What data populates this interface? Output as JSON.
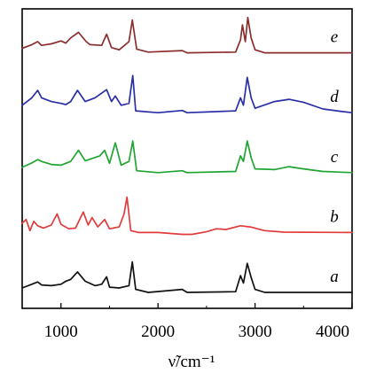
{
  "chart_data": {
    "type": "line",
    "title": "",
    "xlabel": "ν̃/cm⁻¹",
    "ylabel": "",
    "xlim": [
      600,
      4000
    ],
    "x_ticks": [
      1000,
      2000,
      3000,
      4000
    ],
    "y_ticks": false,
    "grid": false,
    "legend": "none",
    "series": [
      {
        "name": "e",
        "color": "#8b2e2e",
        "offset": 4,
        "points": [
          [
            600,
            0.12
          ],
          [
            700,
            0.22
          ],
          [
            760,
            0.3
          ],
          [
            800,
            0.2
          ],
          [
            900,
            0.24
          ],
          [
            1000,
            0.32
          ],
          [
            1050,
            0.26
          ],
          [
            1100,
            0.4
          ],
          [
            1180,
            0.55
          ],
          [
            1260,
            0.3
          ],
          [
            1300,
            0.22
          ],
          [
            1420,
            0.2
          ],
          [
            1470,
            0.5
          ],
          [
            1520,
            0.14
          ],
          [
            1600,
            0.08
          ],
          [
            1700,
            0.3
          ],
          [
            1735,
            0.88
          ],
          [
            1780,
            0.1
          ],
          [
            1900,
            0.02
          ],
          [
            2250,
            0.06
          ],
          [
            2300,
            0.0
          ],
          [
            2800,
            0.02
          ],
          [
            2850,
            0.35
          ],
          [
            2870,
            0.75
          ],
          [
            2900,
            0.3
          ],
          [
            2925,
            0.95
          ],
          [
            2960,
            0.4
          ],
          [
            3000,
            0.08
          ],
          [
            3100,
            0.0
          ],
          [
            4000,
            0.0
          ]
        ]
      },
      {
        "name": "d",
        "color": "#2a2fa6",
        "offset": 3,
        "points": [
          [
            600,
            0.2
          ],
          [
            700,
            0.4
          ],
          [
            760,
            0.6
          ],
          [
            800,
            0.4
          ],
          [
            900,
            0.3
          ],
          [
            1000,
            0.25
          ],
          [
            1050,
            0.22
          ],
          [
            1100,
            0.3
          ],
          [
            1170,
            0.6
          ],
          [
            1250,
            0.3
          ],
          [
            1350,
            0.4
          ],
          [
            1470,
            0.62
          ],
          [
            1520,
            0.3
          ],
          [
            1560,
            0.45
          ],
          [
            1620,
            0.2
          ],
          [
            1700,
            0.25
          ],
          [
            1740,
            1.0
          ],
          [
            1770,
            0.05
          ],
          [
            2000,
            0.0
          ],
          [
            2250,
            0.06
          ],
          [
            2300,
            0.0
          ],
          [
            2800,
            0.05
          ],
          [
            2850,
            0.4
          ],
          [
            2880,
            0.2
          ],
          [
            2920,
            0.95
          ],
          [
            2960,
            0.4
          ],
          [
            3000,
            0.12
          ],
          [
            3200,
            0.3
          ],
          [
            3350,
            0.36
          ],
          [
            3500,
            0.28
          ],
          [
            3700,
            0.1
          ],
          [
            3900,
            0.03
          ],
          [
            4000,
            0.0
          ]
        ]
      },
      {
        "name": "c",
        "color": "#1fa531",
        "offset": 2,
        "points": [
          [
            600,
            0.14
          ],
          [
            700,
            0.26
          ],
          [
            760,
            0.35
          ],
          [
            800,
            0.3
          ],
          [
            900,
            0.22
          ],
          [
            1000,
            0.2
          ],
          [
            1100,
            0.3
          ],
          [
            1180,
            0.6
          ],
          [
            1250,
            0.32
          ],
          [
            1400,
            0.45
          ],
          [
            1450,
            0.6
          ],
          [
            1500,
            0.25
          ],
          [
            1560,
            0.8
          ],
          [
            1620,
            0.2
          ],
          [
            1700,
            0.3
          ],
          [
            1740,
            0.85
          ],
          [
            1780,
            0.05
          ],
          [
            2000,
            0.0
          ],
          [
            2250,
            0.05
          ],
          [
            2300,
            0.0
          ],
          [
            2800,
            0.03
          ],
          [
            2850,
            0.45
          ],
          [
            2880,
            0.3
          ],
          [
            2920,
            0.85
          ],
          [
            2960,
            0.4
          ],
          [
            3000,
            0.1
          ],
          [
            3200,
            0.08
          ],
          [
            3350,
            0.16
          ],
          [
            3500,
            0.1
          ],
          [
            3700,
            0.03
          ],
          [
            4000,
            0.0
          ]
        ]
      },
      {
        "name": "b",
        "color": "#e23b3b",
        "offset": 1,
        "points": [
          [
            600,
            0.25
          ],
          [
            640,
            0.35
          ],
          [
            680,
            0.05
          ],
          [
            720,
            0.3
          ],
          [
            760,
            0.18
          ],
          [
            820,
            0.12
          ],
          [
            900,
            0.2
          ],
          [
            960,
            0.5
          ],
          [
            1000,
            0.22
          ],
          [
            1080,
            0.1
          ],
          [
            1150,
            0.12
          ],
          [
            1230,
            0.55
          ],
          [
            1280,
            0.2
          ],
          [
            1320,
            0.4
          ],
          [
            1380,
            0.15
          ],
          [
            1450,
            0.35
          ],
          [
            1500,
            0.1
          ],
          [
            1600,
            0.15
          ],
          [
            1650,
            0.5
          ],
          [
            1680,
            0.95
          ],
          [
            1720,
            0.05
          ],
          [
            1800,
            0.0
          ],
          [
            2000,
            0.0
          ],
          [
            2250,
            -0.05
          ],
          [
            2350,
            -0.05
          ],
          [
            2500,
            0.02
          ],
          [
            2600,
            0.1
          ],
          [
            2700,
            0.08
          ],
          [
            2850,
            0.18
          ],
          [
            2950,
            0.15
          ],
          [
            3100,
            0.05
          ],
          [
            3300,
            0.01
          ],
          [
            4000,
            0.0
          ]
        ]
      },
      {
        "name": "a",
        "color": "#111111",
        "offset": 0,
        "points": [
          [
            600,
            0.12
          ],
          [
            700,
            0.22
          ],
          [
            760,
            0.28
          ],
          [
            800,
            0.2
          ],
          [
            900,
            0.18
          ],
          [
            1000,
            0.22
          ],
          [
            1050,
            0.3
          ],
          [
            1100,
            0.35
          ],
          [
            1170,
            0.55
          ],
          [
            1250,
            0.3
          ],
          [
            1350,
            0.18
          ],
          [
            1420,
            0.22
          ],
          [
            1470,
            0.42
          ],
          [
            1500,
            0.14
          ],
          [
            1600,
            0.12
          ],
          [
            1700,
            0.18
          ],
          [
            1735,
            0.82
          ],
          [
            1770,
            0.08
          ],
          [
            1900,
            0.0
          ],
          [
            2250,
            0.08
          ],
          [
            2300,
            0.0
          ],
          [
            2800,
            0.02
          ],
          [
            2850,
            0.45
          ],
          [
            2880,
            0.25
          ],
          [
            2920,
            0.78
          ],
          [
            2960,
            0.4
          ],
          [
            3000,
            0.08
          ],
          [
            3100,
            0.0
          ],
          [
            4000,
            0.0
          ]
        ]
      }
    ],
    "series_labels": [
      "e",
      "d",
      "c",
      "b",
      "a"
    ]
  }
}
